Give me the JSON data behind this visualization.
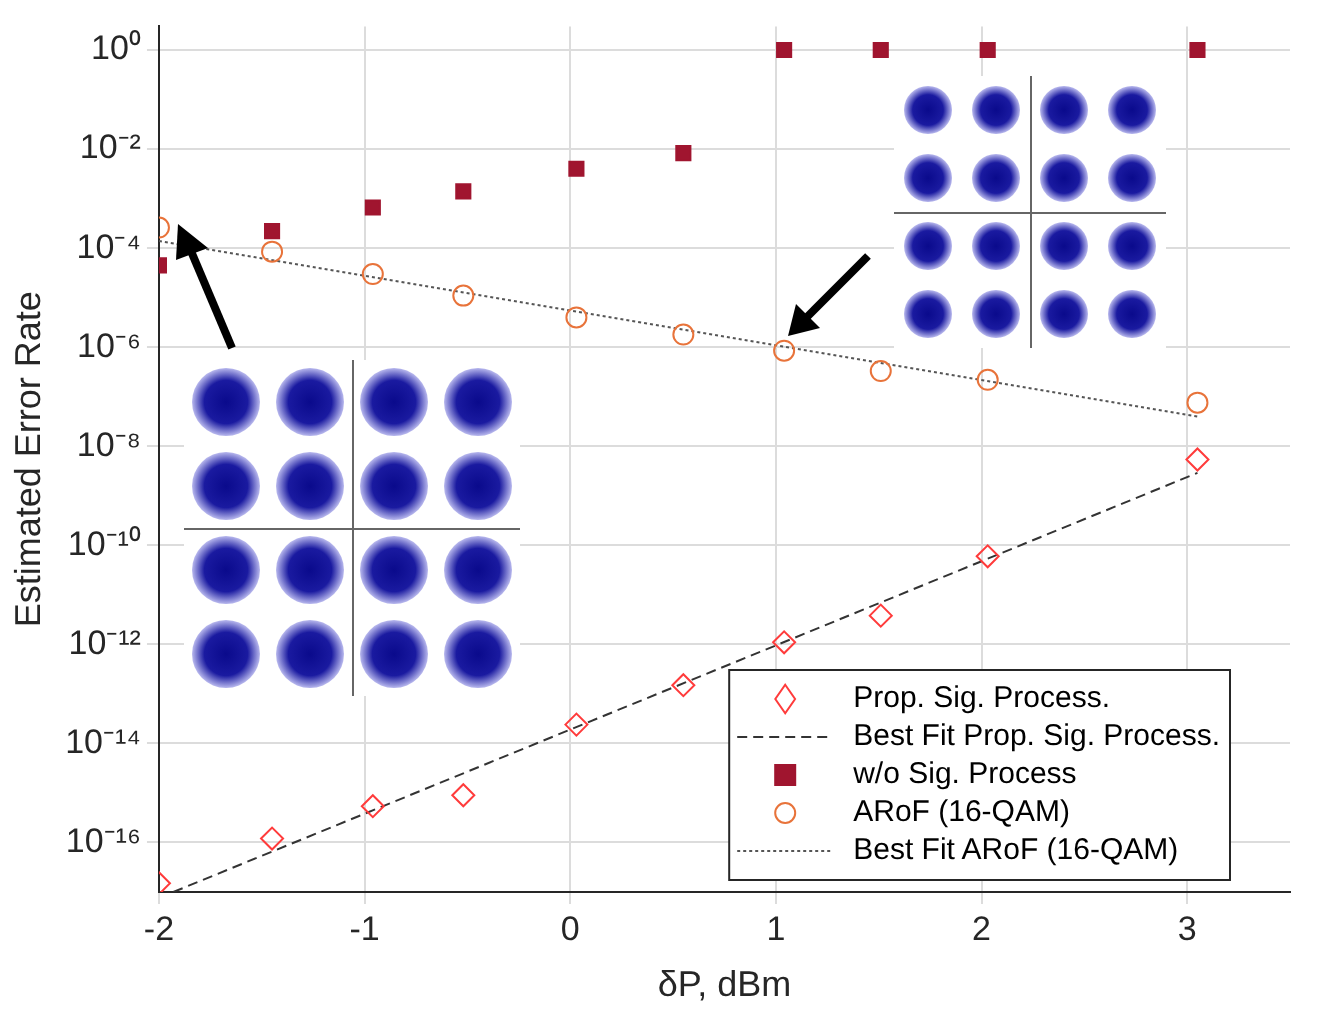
{
  "chart_data": {
    "type": "scatter",
    "xlabel": "δP, dBm",
    "ylabel": "Estimated Error Rate",
    "xlim": [
      -2,
      3.5
    ],
    "xticks": [
      -2,
      -1,
      0,
      1,
      2,
      3
    ],
    "ylim": [
      1e-17,
      3
    ],
    "log": "y",
    "yticks": [
      {
        "value": 1e-16,
        "label": "10⁻¹⁶"
      },
      {
        "value": 1e-14,
        "label": "10⁻¹⁴"
      },
      {
        "value": 1e-12,
        "label": "10⁻¹²"
      },
      {
        "value": 1e-10,
        "label": "10⁻¹⁰"
      },
      {
        "value": 1e-08,
        "label": "10⁻⁸"
      },
      {
        "value": 1e-06,
        "label": "10⁻⁶"
      },
      {
        "value": 0.0001,
        "label": "10⁻⁴"
      },
      {
        "value": 0.01,
        "label": "10⁻²"
      },
      {
        "value": 1,
        "label": "10⁰"
      }
    ],
    "grid": true,
    "legend": "bottom right",
    "series": [
      {
        "name": "Prop. Sig. Process.",
        "type": "scatter",
        "marker": "diamond",
        "color": "#ff3b3b",
        "x": [
          -2,
          -1.45,
          -0.96,
          -0.52,
          0.03,
          0.55,
          1.04,
          1.51,
          2.03,
          3.05
        ],
        "values": [
          1.5e-17,
          1.2e-16,
          5.4e-16,
          9e-16,
          2.4e-14,
          1.5e-13,
          1.1e-12,
          3.8e-12,
          6e-11,
          5.4e-09
        ]
      },
      {
        "name": "Best Fit Prop. Sig. Process.",
        "type": "line",
        "marker": "none",
        "line_style": "dashed",
        "color": "#333333",
        "x": [
          -1.93,
          3.05
        ],
        "values": [
          1e-17,
          2.9e-09
        ]
      },
      {
        "name": "w/o Sig. Process",
        "type": "scatter",
        "marker": "square",
        "color": "#a0152f",
        "x": [
          -2,
          -1.45,
          -0.96,
          -0.52,
          0.03,
          0.55,
          1.04,
          1.51,
          2.03,
          3.05
        ],
        "values": [
          4.5e-05,
          0.00022,
          0.00066,
          0.0014,
          0.004,
          0.0083,
          1,
          1,
          1,
          1
        ]
      },
      {
        "name": "ARoF (16-QAM)",
        "type": "scatter",
        "marker": "circle",
        "color": "#e8733a",
        "x": [
          -2,
          -1.45,
          -0.96,
          -0.52,
          0.03,
          0.55,
          1.04,
          1.51,
          2.03,
          3.05
        ],
        "values": [
          0.00026,
          8.5e-05,
          3e-05,
          1.1e-05,
          4e-06,
          1.8e-06,
          8.5e-07,
          3.3e-07,
          2.2e-07,
          7.6e-08
        ]
      },
      {
        "name": "Best Fit ARoF (16-QAM)",
        "type": "line",
        "marker": "none",
        "line_style": "dotted",
        "color": "#555555",
        "x": [
          -2,
          3.05
        ],
        "values": [
          0.00014,
          4e-08
        ]
      }
    ]
  }
}
